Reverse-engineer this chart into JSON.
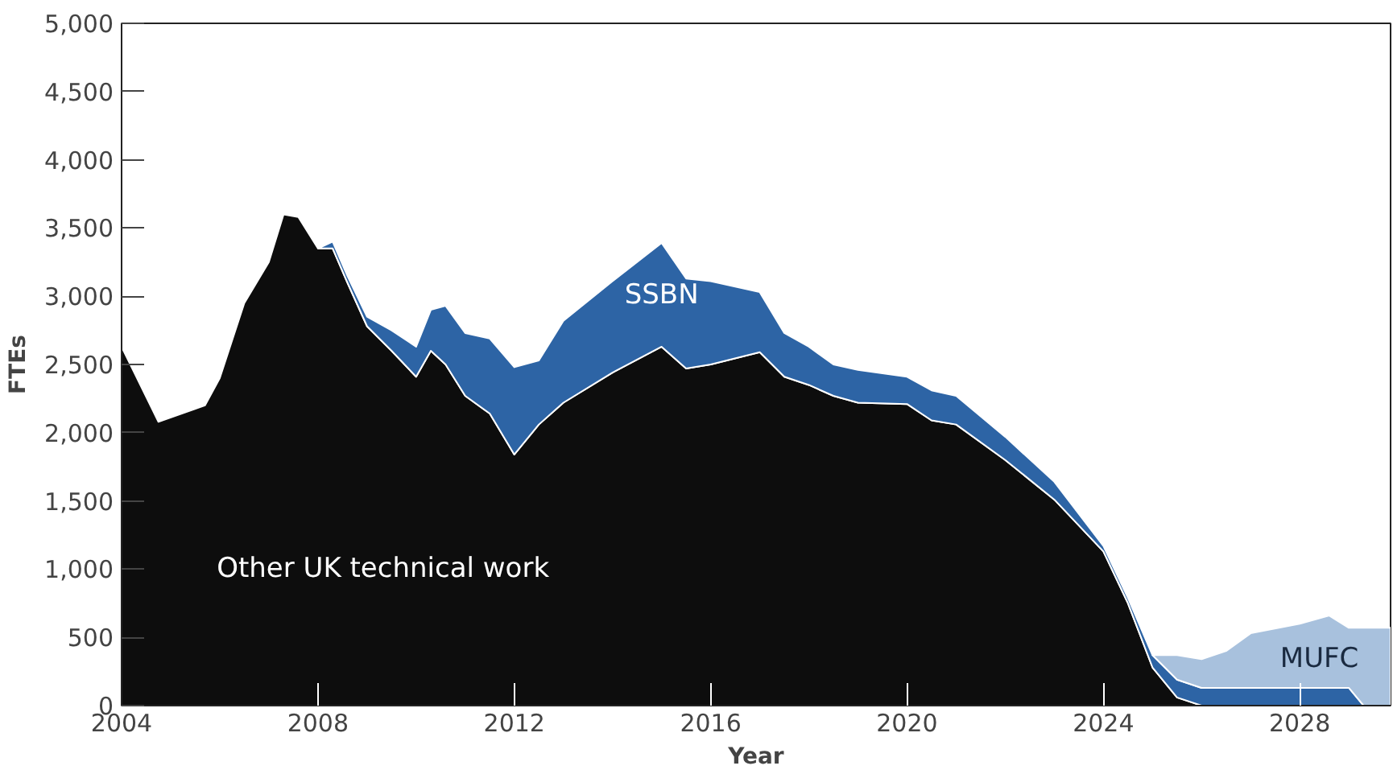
{
  "chart_data": {
    "type": "area",
    "stacked": true,
    "xlabel": "Year",
    "ylabel": "FTEs",
    "x": [
      2004,
      2004.75,
      2005.7,
      2006,
      2006.5,
      2007,
      2007.3,
      2007.6,
      2008,
      2008.3,
      2008.6,
      2009,
      2009.5,
      2010,
      2010.3,
      2010.6,
      2011,
      2011.5,
      2012,
      2012.5,
      2013,
      2014,
      2015,
      2015.5,
      2016,
      2017,
      2017.5,
      2018,
      2018.5,
      2019,
      2020,
      2020.5,
      2021,
      2022,
      2023,
      2024,
      2024.5,
      2025,
      2025.5,
      2026,
      2026.5,
      2027,
      2028,
      2028.6,
      2029,
      2029.3,
      2029.85
    ],
    "series": [
      {
        "name": "Other UK technical work",
        "color": "#0d0d0d",
        "values": [
          2630,
          2080,
          2200,
          2400,
          2950,
          3250,
          3600,
          3580,
          3350,
          3350,
          3100,
          2780,
          2600,
          2410,
          2600,
          2500,
          2270,
          2140,
          1840,
          2060,
          2220,
          2440,
          2630,
          2470,
          2500,
          2590,
          2410,
          2350,
          2270,
          2220,
          2210,
          2090,
          2060,
          1800,
          1510,
          1130,
          750,
          280,
          60,
          0,
          null,
          null,
          null,
          null,
          null,
          null,
          null
        ]
      },
      {
        "name": "SSBN",
        "color": "#2d64a5",
        "values": [
          null,
          null,
          null,
          null,
          null,
          null,
          null,
          null,
          0,
          50,
          50,
          70,
          150,
          220,
          300,
          430,
          460,
          550,
          640,
          470,
          600,
          670,
          760,
          660,
          610,
          440,
          320,
          280,
          230,
          240,
          200,
          220,
          210,
          170,
          130,
          40,
          40,
          90,
          130,
          130,
          130,
          130,
          130,
          130,
          130,
          0,
          null
        ]
      },
      {
        "name": "MUFC",
        "color": "#a8c1dd",
        "values": [
          null,
          null,
          null,
          null,
          null,
          null,
          null,
          null,
          null,
          null,
          null,
          null,
          null,
          null,
          null,
          null,
          null,
          null,
          null,
          null,
          null,
          null,
          null,
          null,
          null,
          null,
          null,
          null,
          null,
          null,
          null,
          null,
          null,
          null,
          null,
          null,
          null,
          0,
          180,
          210,
          270,
          400,
          470,
          530,
          440,
          570,
          570
        ]
      }
    ],
    "xlim": [
      2004,
      2029.85
    ],
    "ylim": [
      0,
      5000
    ],
    "xticks": [
      2004,
      2008,
      2012,
      2016,
      2020,
      2024,
      2028
    ],
    "yticks": [
      0,
      500,
      {
        "value": 1000,
        "label": "1,000"
      },
      {
        "value": 1500,
        "label": "1,500"
      },
      {
        "value": 2000,
        "label": "2,000"
      },
      {
        "value": 2500,
        "label": "2,500"
      },
      {
        "value": 3000,
        "label": "3,000"
      },
      {
        "value": 3500,
        "label": "3,500"
      },
      {
        "value": 4000,
        "label": "4,000"
      },
      {
        "value": 4500,
        "label": "4,500"
      },
      {
        "value": 5000,
        "label": "5,000"
      }
    ],
    "grid": false
  }
}
